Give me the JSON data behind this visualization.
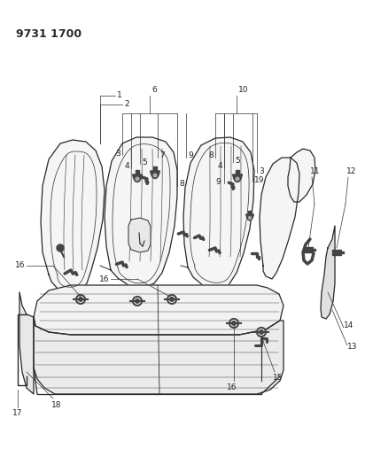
{
  "title": "9731 1700",
  "bg_color": "#ffffff",
  "line_color": "#2a2a2a",
  "title_fontsize": 9,
  "figsize": [
    4.12,
    5.33
  ],
  "dpi": 100,
  "seat_fill": "#f5f5f5",
  "seat_fill2": "#eeeeee",
  "hardware_color": "#444444"
}
